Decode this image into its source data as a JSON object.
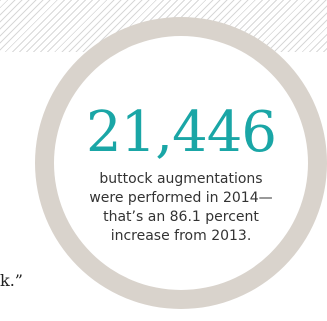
{
  "stat": {
    "number": "21,446",
    "line1": "buttock augmentations",
    "line2": "were performed in 2014—",
    "line3": "that’s an 86.1 percent",
    "line4": "increase from 2013."
  },
  "fragment_text": "k.”",
  "colors": {
    "accent": "#1aa6a6",
    "ring": "#d9d3cc",
    "text": "#333333"
  }
}
